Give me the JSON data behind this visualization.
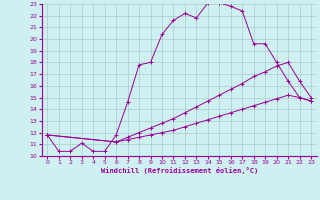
{
  "xlabel": "Windchill (Refroidissement éolien,°C)",
  "xlim": [
    -0.5,
    23.5
  ],
  "ylim": [
    10,
    23
  ],
  "xticks": [
    0,
    1,
    2,
    3,
    4,
    5,
    6,
    7,
    8,
    9,
    10,
    11,
    12,
    13,
    14,
    15,
    16,
    17,
    18,
    19,
    20,
    21,
    22,
    23
  ],
  "yticks": [
    10,
    11,
    12,
    13,
    14,
    15,
    16,
    17,
    18,
    19,
    20,
    21,
    22,
    23
  ],
  "bg_color": "#cff0f0",
  "line_color": "#990099",
  "grid_color": "#aacccc",
  "lines": [
    {
      "x": [
        0,
        1,
        2,
        3,
        4,
        5,
        6,
        7,
        8,
        9,
        10,
        11,
        12,
        13,
        14,
        15,
        16,
        17,
        18,
        19,
        20,
        21,
        22,
        23
      ],
      "y": [
        11.8,
        10.4,
        10.4,
        11.1,
        10.4,
        10.4,
        11.8,
        14.6,
        17.8,
        18.0,
        20.4,
        21.6,
        22.2,
        21.8,
        23.1,
        23.1,
        22.8,
        22.4,
        19.6,
        19.6,
        18.0,
        16.4,
        15.0,
        14.7
      ]
    },
    {
      "x": [
        0,
        6,
        7,
        8,
        9,
        10,
        11,
        12,
        13,
        14,
        15,
        16,
        17,
        18,
        19,
        20,
        21,
        22,
        23
      ],
      "y": [
        11.8,
        11.2,
        11.4,
        11.6,
        11.8,
        12.0,
        12.2,
        12.5,
        12.8,
        13.1,
        13.4,
        13.7,
        14.0,
        14.3,
        14.6,
        14.9,
        15.2,
        15.0,
        14.7
      ]
    },
    {
      "x": [
        0,
        6,
        7,
        8,
        9,
        10,
        11,
        12,
        13,
        14,
        15,
        16,
        17,
        18,
        19,
        20,
        21,
        22,
        23
      ],
      "y": [
        11.8,
        11.2,
        11.6,
        12.0,
        12.4,
        12.8,
        13.2,
        13.7,
        14.2,
        14.7,
        15.2,
        15.7,
        16.2,
        16.8,
        17.2,
        17.7,
        18.0,
        16.4,
        15.0
      ]
    }
  ]
}
